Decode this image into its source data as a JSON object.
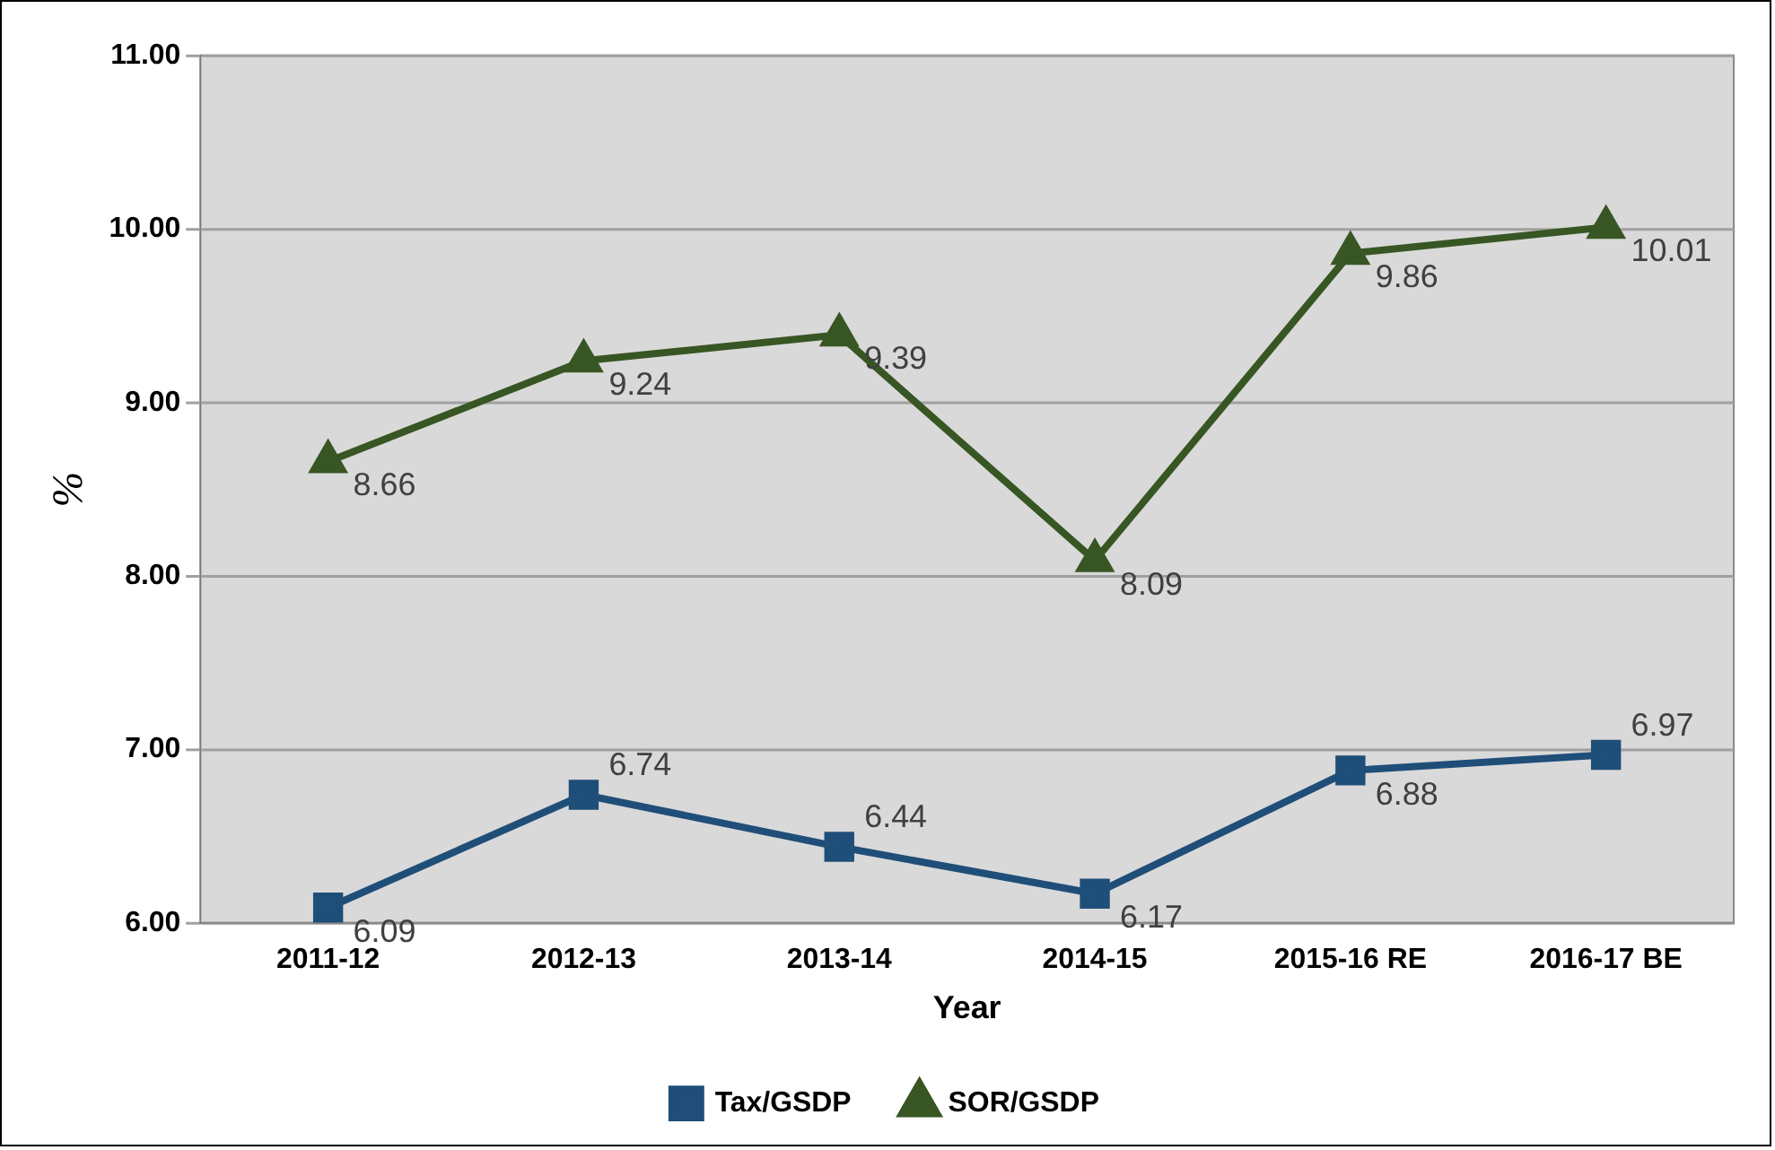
{
  "chart_data": {
    "type": "line",
    "xlabel": "Year",
    "ylabel": "%",
    "categories": [
      "2011-12",
      "2012-13",
      "2013-14",
      "2014-15",
      "2015-16 RE",
      "2016-17 BE"
    ],
    "series": [
      {
        "name": "Tax/GSDP",
        "color": "#1f4e79",
        "marker": "square",
        "values": [
          6.09,
          6.74,
          6.44,
          6.17,
          6.88,
          6.97
        ]
      },
      {
        "name": "SOR/GSDP",
        "color": "#375623",
        "marker": "triangle",
        "values": [
          8.66,
          9.24,
          9.39,
          8.09,
          9.86,
          10.01
        ]
      }
    ],
    "ylim": [
      6,
      11
    ],
    "yticks": [
      {
        "value": 6,
        "label": "6.00"
      },
      {
        "value": 7,
        "label": "7.00"
      },
      {
        "value": 8,
        "label": "8.00"
      },
      {
        "value": 9,
        "label": "9.00"
      },
      {
        "value": 10,
        "label": "10.00"
      },
      {
        "value": 11,
        "label": "11.00"
      }
    ],
    "grid": "y",
    "legend": "bottom",
    "data_labels": true,
    "line_style": "solid"
  }
}
